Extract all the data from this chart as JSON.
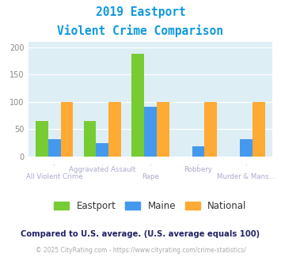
{
  "title_line1": "2019 Eastport",
  "title_line2": "Violent Crime Comparison",
  "categories": [
    "All Violent Crime",
    "Aggravated Assault",
    "Rape",
    "Robbery",
    "Murder & Mans..."
  ],
  "cat_top": [
    "",
    "Aggravated Assault",
    "",
    "Robbery",
    ""
  ],
  "cat_bottom": [
    "All Violent Crime",
    "",
    "Rape",
    "",
    "Murder & Mans..."
  ],
  "eastport": [
    65,
    65,
    188,
    0,
    0
  ],
  "maine": [
    32,
    25,
    91,
    19,
    32
  ],
  "national": [
    100,
    100,
    100,
    100,
    100
  ],
  "color_eastport": "#77cc33",
  "color_maine": "#4499ee",
  "color_national": "#ffaa33",
  "ylim": [
    0,
    210
  ],
  "yticks": [
    0,
    50,
    100,
    150,
    200
  ],
  "background_color": "#ddeef5",
  "legend_labels": [
    "Eastport",
    "Maine",
    "National"
  ],
  "footnote1": "Compared to U.S. average. (U.S. average equals 100)",
  "footnote2": "© 2025 CityRating.com - https://www.cityrating.com/crime-statistics/",
  "title_color": "#1199dd",
  "footnote1_color": "#222266",
  "footnote2_color": "#aaaaaa",
  "label_color": "#aaaacc"
}
